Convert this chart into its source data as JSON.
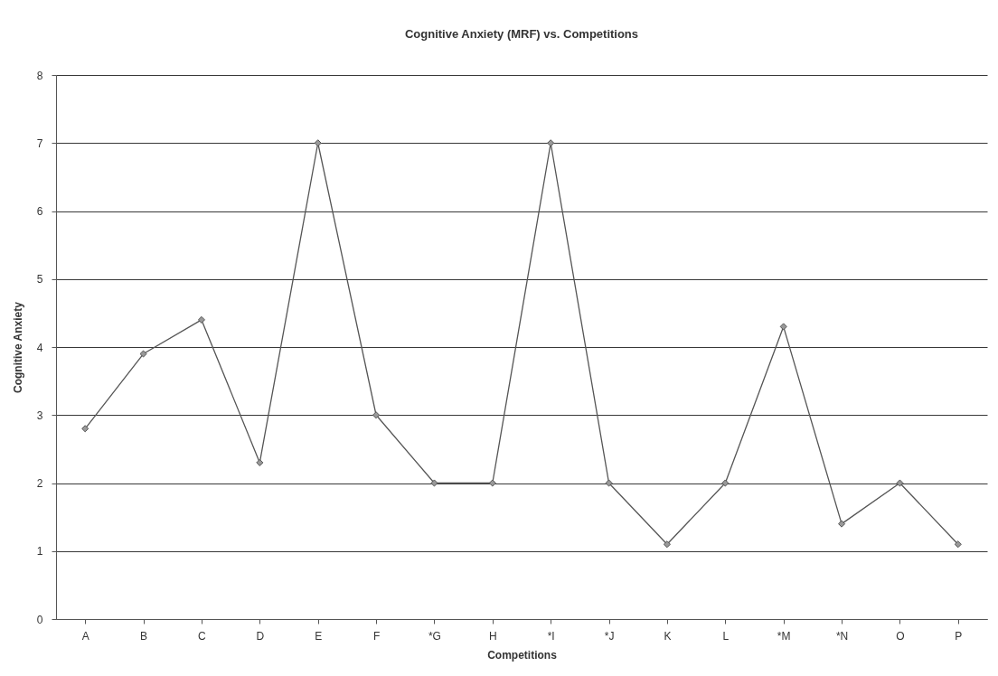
{
  "chart_data": {
    "type": "line",
    "title": "Cognitive Anxiety (MRF) vs. Competitions",
    "xlabel": "Competitions",
    "ylabel": "Cognitive Anxiety",
    "categories": [
      "A",
      "B",
      "C",
      "D",
      "E",
      "F",
      "*G",
      "H",
      "*I",
      "*J",
      "K",
      "L",
      "*M",
      "*N",
      "O",
      "P"
    ],
    "series": [
      {
        "color": "#555555",
        "values": [
          2.8,
          3.9,
          4.4,
          2.3,
          7,
          3,
          2,
          2,
          7,
          2,
          1.1,
          2,
          4.3,
          1.4,
          2,
          1.1
        ]
      }
    ],
    "ylim": [
      0,
      8
    ],
    "yticks": [
      0,
      1,
      2,
      3,
      4,
      5,
      6,
      7,
      8
    ],
    "grid": "y",
    "marker": "diamond",
    "line_style": "solid"
  }
}
